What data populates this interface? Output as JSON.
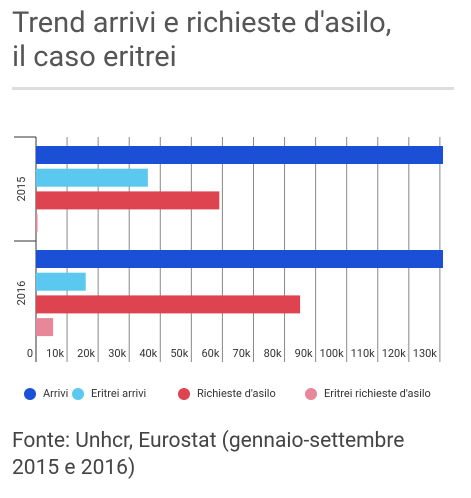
{
  "chart_data": {
    "type": "hbar",
    "title": "Trend arrivi e richieste d'asilo, il caso eritrei",
    "source": "Fonte: Unhcr, Eurostat (gennaio-settembre 2015 e 2016)",
    "categories": [
      "2015",
      "2016"
    ],
    "series": [
      {
        "name": "Arrivi",
        "color": "#1a4fd6",
        "values": [
          131000,
          131000
        ]
      },
      {
        "name": "Eritrei arrivi",
        "color": "#5bc8f0",
        "values": [
          36000,
          16000
        ]
      },
      {
        "name": "Richieste d'asilo",
        "color": "#de4450",
        "values": [
          59000,
          85000
        ]
      },
      {
        "name": "Eritrei richieste d'asilo",
        "color": "#e8879a",
        "values": [
          500,
          5500
        ]
      }
    ],
    "xlim": [
      0,
      131000
    ],
    "xticks": [
      0,
      {
        "value": 10000,
        "label": "10k"
      },
      {
        "value": 20000,
        "label": "20k"
      },
      {
        "value": 30000,
        "label": "30k"
      },
      {
        "value": 40000,
        "label": "40k"
      },
      {
        "value": 50000,
        "label": "50k"
      },
      {
        "value": 60000,
        "label": "60k"
      },
      {
        "value": 70000,
        "label": "70k"
      },
      {
        "value": 80000,
        "label": "80k"
      },
      {
        "value": 90000,
        "label": "90k"
      },
      {
        "value": 100000,
        "label": "100k"
      },
      {
        "value": 110000,
        "label": "110k"
      },
      {
        "value": 120000,
        "label": "120k"
      },
      {
        "value": 130000,
        "label": "130k"
      }
    ],
    "grid": true
  }
}
